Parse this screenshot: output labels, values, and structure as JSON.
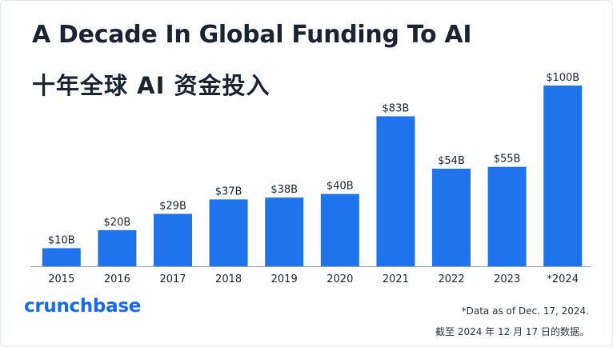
{
  "title_en": "A Decade In Global Funding To AI",
  "title_zh_prefix": "十年全球",
  "title_zh_bold": "AI",
  "title_zh_suffix": "资金投入",
  "brand": "crunchbase",
  "footnote_en": "*Data as of Dec. 17, 2024.",
  "footnote_zh": "截至 2024 年 12 月 17 日的数据。",
  "colors": {
    "bar": "#1f74ee",
    "axis": "#9aa3af",
    "text": "#1b2433",
    "brand": "#1469f5"
  },
  "chart_data": {
    "type": "bar",
    "title": "A Decade In Global Funding To AI",
    "categories": [
      "2015",
      "2016",
      "2017",
      "2018",
      "2019",
      "2020",
      "2021",
      "2022",
      "2023",
      "*2024"
    ],
    "values": [
      10,
      20,
      29,
      37,
      38,
      40,
      83,
      54,
      55,
      100
    ],
    "labels": [
      "$10B",
      "$20B",
      "$29B",
      "$37B",
      "$38B",
      "$40B",
      "$83B",
      "$54B",
      "$55B",
      "$100B"
    ],
    "unit": "$B",
    "ylim": [
      0,
      100
    ],
    "grid": false,
    "legend": false
  }
}
